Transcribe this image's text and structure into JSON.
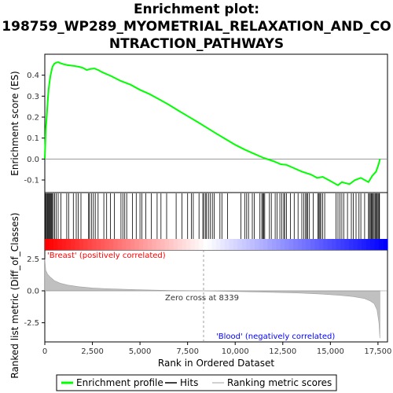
{
  "chart_data": {
    "type": "line",
    "title_lines": [
      "Enrichment plot:",
      "198759_WP289_MYOMETRIAL_RELAXATION_AND_CO",
      "NTRACTION_PATHWAYS"
    ],
    "ylabel_top": "Enrichment score (ES)",
    "ylabel_bottom": "Ranked list metric (Diff_of_Classes)",
    "xlabel": "Rank in Ordered Dataset",
    "x_range": [
      0,
      18000
    ],
    "x_ticks": [
      "0",
      "2,500",
      "5,000",
      "7,500",
      "10,000",
      "12,500",
      "15,000",
      "17,500"
    ],
    "x_tick_values": [
      0,
      2500,
      5000,
      7500,
      10000,
      12500,
      15000,
      17500
    ],
    "es_ylim": [
      -0.16,
      0.5
    ],
    "es_ticks": [
      "0.4",
      "0.3",
      "0.2",
      "0.1",
      "0.0",
      "-0.1"
    ],
    "es_tick_values": [
      0.4,
      0.3,
      0.2,
      0.1,
      0.0,
      -0.1
    ],
    "metric_ylim": [
      -4.0,
      3.2
    ],
    "metric_ticks": [
      "2.5",
      "0.0",
      "-2.5"
    ],
    "metric_tick_values": [
      2.5,
      0.0,
      -2.5
    ],
    "es_curve": {
      "x": [
        0,
        50,
        100,
        150,
        200,
        250,
        300,
        350,
        400,
        500,
        600,
        700,
        800,
        1000,
        1200,
        1500,
        1800,
        2000,
        2200,
        2400,
        2600,
        2800,
        3000,
        3500,
        4000,
        4500,
        5000,
        5500,
        6000,
        6500,
        7000,
        7500,
        8000,
        8500,
        9000,
        9500,
        10000,
        10500,
        11000,
        11500,
        12000,
        12400,
        12700,
        13000,
        13500,
        14000,
        14300,
        14600,
        15000,
        15400,
        15600,
        16000,
        16300,
        16600,
        17000,
        17200,
        17400,
        17550,
        17600
      ],
      "y": [
        0.0,
        0.14,
        0.2,
        0.27,
        0.33,
        0.37,
        0.4,
        0.42,
        0.44,
        0.455,
        0.46,
        0.462,
        0.458,
        0.452,
        0.448,
        0.445,
        0.44,
        0.435,
        0.425,
        0.43,
        0.432,
        0.425,
        0.415,
        0.395,
        0.372,
        0.355,
        0.33,
        0.31,
        0.285,
        0.26,
        0.232,
        0.205,
        0.178,
        0.15,
        0.122,
        0.095,
        0.068,
        0.045,
        0.025,
        0.005,
        -0.01,
        -0.025,
        -0.028,
        -0.04,
        -0.06,
        -0.075,
        -0.09,
        -0.085,
        -0.105,
        -0.125,
        -0.11,
        -0.12,
        -0.1,
        -0.09,
        -0.11,
        -0.08,
        -0.06,
        -0.02,
        0.0
      ]
    },
    "hits": [
      20,
      60,
      110,
      150,
      190,
      230,
      270,
      310,
      350,
      390,
      450,
      520,
      600,
      700,
      850,
      1150,
      1250,
      1500,
      1650,
      1750,
      1900,
      2300,
      2350,
      2450,
      2550,
      2650,
      2800,
      3100,
      3250,
      3450,
      3650,
      4000,
      4100,
      4200,
      4300,
      4600,
      4800,
      5000,
      5100,
      5300,
      5600,
      5900,
      6100,
      6400,
      6900,
      7200,
      7500,
      7700,
      7800,
      8100,
      8300,
      8350,
      8450,
      8500,
      8600,
      8700,
      8800,
      8900,
      9200,
      9300,
      9600,
      10300,
      10500,
      10600,
      10700,
      10900,
      11000,
      11300,
      11400,
      11450,
      11500,
      11550,
      11800,
      11900,
      12100,
      12200,
      12350,
      12450,
      12550,
      12600,
      12700,
      12900,
      13100,
      13300,
      13500,
      13600,
      13700,
      13750,
      13800,
      13900,
      14100,
      14350,
      14400,
      14450,
      14500,
      14600,
      14700,
      15300,
      15400,
      15500,
      15600,
      15700,
      15900,
      16100,
      16200,
      16350,
      16500,
      16600,
      16800,
      17000,
      17050,
      17100,
      17150,
      17200,
      17250,
      17300,
      17350,
      17400,
      17450,
      17500,
      17550,
      17580
    ],
    "metric_curve": {
      "x": [
        0,
        50,
        150,
        300,
        500,
        800,
        1200,
        1800,
        2500,
        3500,
        5000,
        6500,
        8339,
        10000,
        12000,
        13500,
        14500,
        15500,
        16200,
        16800,
        17100,
        17300,
        17450,
        17550,
        17600
      ],
      "y": [
        2.5,
        1.6,
        1.3,
        1.05,
        0.8,
        0.6,
        0.45,
        0.32,
        0.22,
        0.15,
        0.08,
        0.03,
        0.0,
        -0.05,
        -0.12,
        -0.18,
        -0.25,
        -0.35,
        -0.45,
        -0.6,
        -0.8,
        -1.0,
        -1.5,
        -2.5,
        -3.7
      ]
    },
    "zero_cross_value": 8339,
    "zero_cross_label": "Zero cross at 8339",
    "pos_label": "'Breast' (positively correlated)",
    "neg_label": "'Blood' (negatively correlated)",
    "legend": [
      "Enrichment profile",
      "Hits",
      "Ranking metric scores"
    ],
    "colors": {
      "es_line": "#00ff00",
      "hit": "#000000",
      "metric_fill": "#c0c0c0",
      "pos_text": "#ff0000",
      "neg_text": "#0000ff",
      "red": "#ff0000",
      "blue": "#0000ff"
    }
  }
}
